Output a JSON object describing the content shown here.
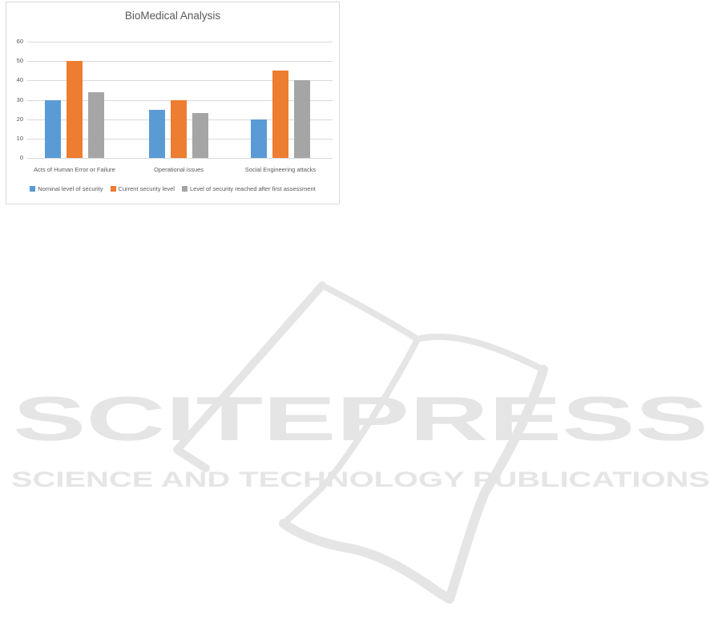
{
  "chart": {
    "border_color": "#D9D9D9",
    "grid_color": "#D9D9D9",
    "text_color": "#595959"
  },
  "chart_data": {
    "type": "bar",
    "title": "BioMedical Analysis",
    "categories": [
      "Acts of Human Error or Failure",
      "Operational issues",
      "Social Engineering attacks"
    ],
    "series": [
      {
        "name": "Nominal level of security",
        "color": "#5B9BD5",
        "values": [
          30,
          25,
          20
        ]
      },
      {
        "name": "Current security level",
        "color": "#ED7D31",
        "values": [
          50,
          30,
          45
        ]
      },
      {
        "name": "Level of security reached after first assessment",
        "color": "#A5A5A5",
        "values": [
          34,
          23,
          40
        ]
      }
    ],
    "xlabel": "",
    "ylabel": "",
    "ylim": [
      0,
      60
    ],
    "yticks": [
      0,
      10,
      20,
      30,
      40,
      50,
      60
    ],
    "grid": true,
    "legend_position": "bottom"
  },
  "watermark": {
    "logo_text": "SCITEPRESS",
    "subtitle_text": "SCIENCE AND TECHNOLOGY PUBLICATIONS",
    "color": "#e5e5e5"
  }
}
